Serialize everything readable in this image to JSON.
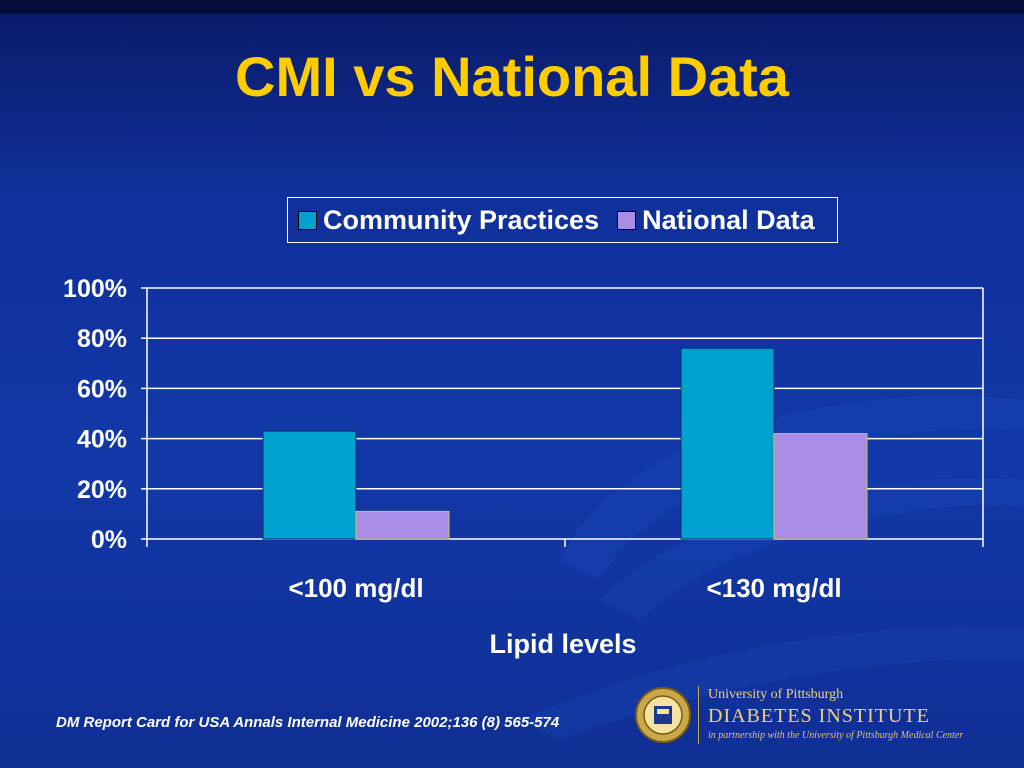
{
  "slide": {
    "title": "CMI vs National Data",
    "footer_citation": "DM Report Card for USA Annals Internal Medicine 2002;136 (8) 565-574"
  },
  "logo": {
    "university": "University of Pittsburgh",
    "institute": "DIABETES INSTITUTE",
    "partnership": "in partnership with the University of Pittsburgh Medical Center",
    "seal_icon": "university-seal-icon"
  },
  "colors": {
    "title": "#ffcc00",
    "series_community": "#00a0d0",
    "series_national": "#a98ce6"
  },
  "chart_data": {
    "type": "bar",
    "title": "",
    "xlabel": "Lipid levels",
    "ylabel": "",
    "categories": [
      "<100 mg/dl",
      "<130 mg/dl"
    ],
    "series": [
      {
        "name": "Community Practices",
        "values": [
          43,
          76
        ]
      },
      {
        "name": "National Data",
        "values": [
          11,
          42
        ]
      }
    ],
    "ylim": [
      0,
      100
    ],
    "y_ticks": [
      0,
      20,
      40,
      60,
      80,
      100
    ],
    "y_tick_labels": [
      "0%",
      "20%",
      "40%",
      "60%",
      "80%",
      "100%"
    ],
    "grid": true,
    "legend_position": "top"
  }
}
